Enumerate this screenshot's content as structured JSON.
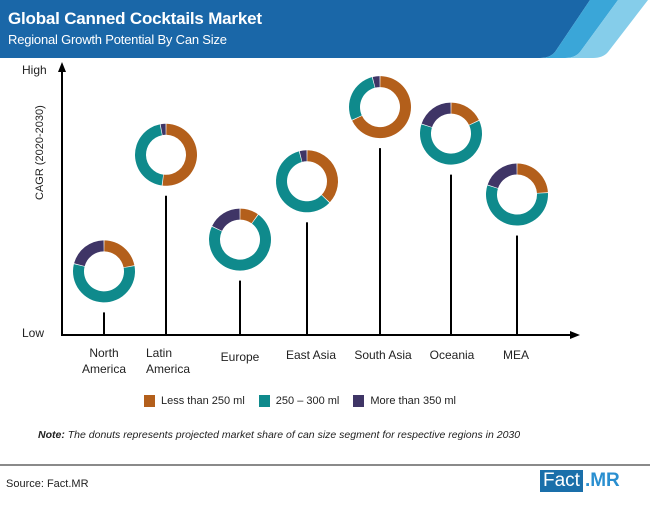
{
  "header": {
    "title": "Global Canned Cocktails Market",
    "subtitle": "Regional Growth Potential By Can Size"
  },
  "colors": {
    "header_dark": "#1a67a8",
    "header_mid": "#3aa6d8",
    "header_light": "#85cdea",
    "less_than_250": "#b35f1b",
    "from_250_to_300": "#0f8a8c",
    "more_than_350": "#3f3566",
    "axis": "#000000"
  },
  "chart_data": {
    "type": "donut-lollipop",
    "title": "Global Canned Cocktails Market",
    "subtitle": "Regional Growth Potential By Can Size",
    "xlabel": "",
    "ylabel": "CAGR (2020-2030)",
    "y_ticks": [
      "Low",
      "High"
    ],
    "categories": [
      "North America",
      "Latin America",
      "Europe",
      "East Asia",
      "South Asia",
      "Oceania",
      "MEA"
    ],
    "relative_cagr_rank": [
      7,
      2,
      5,
      3,
      1,
      2.5,
      4
    ],
    "relative_cagr_height": [
      0.24,
      0.68,
      0.36,
      0.58,
      0.86,
      0.76,
      0.53
    ],
    "series": [
      {
        "name": "Less than 250 ml",
        "values": [
          22,
          52,
          10,
          37,
          68,
          18,
          24
        ]
      },
      {
        "name": "250 – 300 ml",
        "values": [
          57,
          45,
          72,
          59,
          28,
          62,
          56
        ]
      },
      {
        "name": "More than 350 ml",
        "values": [
          21,
          3,
          18,
          4,
          4,
          20,
          20
        ]
      }
    ],
    "legend_position": "bottom",
    "grid": false,
    "note": "The donuts represents projected market share of can size segment for respective regions in 2030"
  },
  "axis": {
    "y_high": "High",
    "y_low": "Low",
    "y_title": "CAGR (2020-2030)"
  },
  "regions": [
    {
      "line1": "North",
      "line2": "America"
    },
    {
      "line1": "Latin",
      "line2": "America"
    },
    {
      "line1": "Europe",
      "line2": ""
    },
    {
      "line1": "East Asia",
      "line2": ""
    },
    {
      "line1": "South Asia",
      "line2": ""
    },
    {
      "line1": "Oceania",
      "line2": ""
    },
    {
      "line1": "MEA",
      "line2": ""
    }
  ],
  "legend": {
    "items": [
      {
        "label": "Less than 250 ml"
      },
      {
        "label": "250 – 300 ml"
      },
      {
        "label": "More than 350 ml"
      }
    ]
  },
  "note": {
    "label": "Note:",
    "text": "The donuts represents projected market share of can size segment for respective regions in 2030"
  },
  "footer": {
    "source": "Source: Fact.MR",
    "logo_fact": "Fact",
    "logo_mr": ".MR"
  }
}
